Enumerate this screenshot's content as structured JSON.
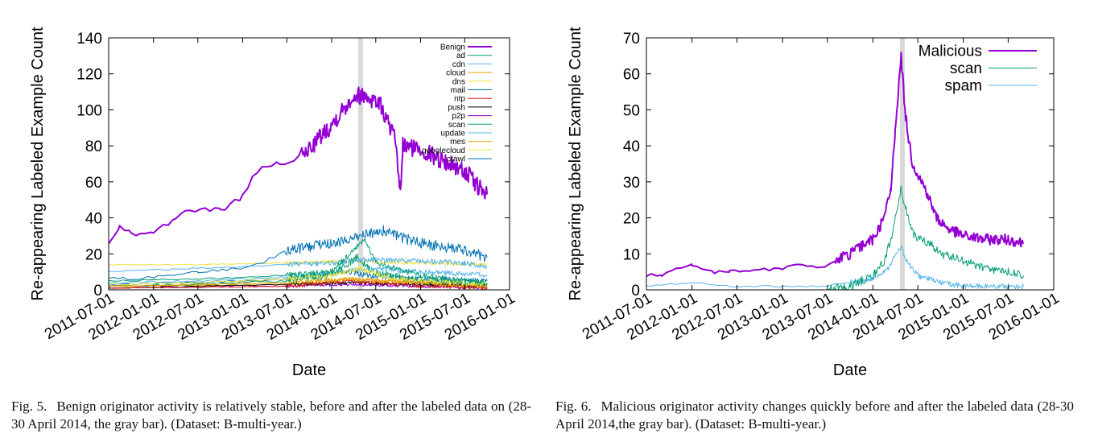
{
  "chart_data": [
    {
      "type": "line",
      "xlabel": "Date",
      "ylabel": "Re-appearing Labeled Example Count",
      "ylim": [
        0,
        140
      ],
      "yticks": [
        0,
        20,
        40,
        60,
        80,
        100,
        120,
        140
      ],
      "xlim": [
        "2011-07-01",
        "2016-01-01"
      ],
      "xticks": [
        "2011-07-01",
        "2012-01-01",
        "2012-07-01",
        "2013-01-01",
        "2013-07-01",
        "2014-01-01",
        "2014-07-01",
        "2015-01-01",
        "2015-07-01",
        "2016-01-01"
      ],
      "highlight": {
        "from": "2014-04-28",
        "to": "2014-04-30",
        "color": "#d9d9d9"
      },
      "legend_position": "top-right",
      "series": [
        {
          "name": "Benign",
          "color": "#9400d3",
          "width": 2,
          "noise": 5,
          "points": [
            [
              "2011-07-01",
              26
            ],
            [
              "2011-08-15",
              36
            ],
            [
              "2011-10-01",
              31
            ],
            [
              "2012-01-01",
              31
            ],
            [
              "2012-04-01",
              40
            ],
            [
              "2012-06-01",
              44
            ],
            [
              "2012-10-01",
              44
            ],
            [
              "2013-01-01",
              52
            ],
            [
              "2013-03-01",
              66
            ],
            [
              "2013-06-01",
              70
            ],
            [
              "2013-09-01",
              74
            ],
            [
              "2014-01-01",
              92
            ],
            [
              "2014-04-01",
              108
            ],
            [
              "2014-05-15",
              108
            ],
            [
              "2014-07-15",
              104
            ],
            [
              "2014-09-15",
              85
            ],
            [
              "2014-10-10",
              55
            ],
            [
              "2014-10-20",
              80
            ],
            [
              "2015-01-01",
              78
            ],
            [
              "2015-04-01",
              72
            ],
            [
              "2015-07-01",
              66
            ],
            [
              "2015-09-10",
              55
            ],
            [
              "2015-10-01",
              53
            ]
          ]
        },
        {
          "name": "ad",
          "color": "#009e73",
          "width": 1,
          "noise": 1.5,
          "points": [
            [
              "2011-07-01",
              5
            ],
            [
              "2012-07-01",
              6
            ],
            [
              "2013-07-01",
              8
            ],
            [
              "2014-01-01",
              10
            ],
            [
              "2014-05-15",
              28
            ],
            [
              "2014-07-01",
              15
            ],
            [
              "2015-01-01",
              8
            ],
            [
              "2015-07-01",
              5
            ],
            [
              "2015-10-01",
              4
            ]
          ]
        },
        {
          "name": "cdn",
          "color": "#56b4e9",
          "width": 1,
          "noise": 1.5,
          "points": [
            [
              "2011-07-01",
              10
            ],
            [
              "2012-01-01",
              11
            ],
            [
              "2013-01-01",
              13
            ],
            [
              "2013-07-01",
              14
            ],
            [
              "2014-01-01",
              15
            ],
            [
              "2014-06-01",
              17
            ],
            [
              "2015-01-01",
              16
            ],
            [
              "2015-07-01",
              15
            ],
            [
              "2015-10-01",
              13
            ]
          ]
        },
        {
          "name": "cloud",
          "color": "#e69f00",
          "width": 1,
          "noise": 1,
          "points": [
            [
              "2011-07-01",
              2
            ],
            [
              "2012-07-01",
              3
            ],
            [
              "2013-07-01",
              4
            ],
            [
              "2014-03-01",
              6
            ],
            [
              "2014-07-01",
              5
            ],
            [
              "2015-01-01",
              4
            ],
            [
              "2015-07-01",
              2
            ],
            [
              "2015-10-01",
              2
            ]
          ]
        },
        {
          "name": "dns",
          "color": "#f0e442",
          "width": 1,
          "noise": 1.5,
          "points": [
            [
              "2011-07-01",
              3
            ],
            [
              "2012-07-01",
              4
            ],
            [
              "2013-07-01",
              6
            ],
            [
              "2014-01-01",
              8
            ],
            [
              "2014-05-01",
              12
            ],
            [
              "2014-09-01",
              6
            ],
            [
              "2015-07-01",
              4
            ],
            [
              "2015-10-01",
              3
            ]
          ]
        },
        {
          "name": "mail",
          "color": "#0072b2",
          "width": 1,
          "noise": 3,
          "points": [
            [
              "2011-07-01",
              6
            ],
            [
              "2012-01-01",
              7
            ],
            [
              "2012-07-01",
              10
            ],
            [
              "2013-01-01",
              12
            ],
            [
              "2013-04-01",
              16
            ],
            [
              "2013-07-01",
              22
            ],
            [
              "2014-01-01",
              26
            ],
            [
              "2014-05-01",
              30
            ],
            [
              "2014-08-01",
              33
            ],
            [
              "2014-10-15",
              29
            ],
            [
              "2015-01-01",
              26
            ],
            [
              "2015-07-01",
              22
            ],
            [
              "2015-10-01",
              18
            ]
          ]
        },
        {
          "name": "ntp",
          "color": "#e51e10",
          "width": 1,
          "noise": 1,
          "points": [
            [
              "2011-07-01",
              1
            ],
            [
              "2013-07-01",
              2
            ],
            [
              "2014-04-01",
              5
            ],
            [
              "2014-07-01",
              4
            ],
            [
              "2015-01-01",
              2
            ],
            [
              "2015-10-01",
              1
            ]
          ]
        },
        {
          "name": "push",
          "color": "#000000",
          "width": 1,
          "noise": 0.8,
          "points": [
            [
              "2011-07-01",
              1
            ],
            [
              "2012-07-01",
              2
            ],
            [
              "2013-07-01",
              3
            ],
            [
              "2014-04-01",
              4
            ],
            [
              "2015-01-01",
              3
            ],
            [
              "2015-10-01",
              2
            ]
          ]
        },
        {
          "name": "p2p",
          "color": "#9400d3",
          "width": 1,
          "noise": 0.8,
          "points": [
            [
              "2011-07-01",
              1
            ],
            [
              "2013-07-01",
              2
            ],
            [
              "2014-04-01",
              3
            ],
            [
              "2015-01-01",
              2
            ],
            [
              "2015-10-01",
              1
            ]
          ]
        },
        {
          "name": "scan",
          "color": "#009e73",
          "width": 1,
          "noise": 2,
          "points": [
            [
              "2011-07-01",
              2
            ],
            [
              "2012-07-01",
              3
            ],
            [
              "2013-07-01",
              5
            ],
            [
              "2014-01-01",
              8
            ],
            [
              "2014-04-15",
              18
            ],
            [
              "2014-06-15",
              10
            ],
            [
              "2015-01-01",
              5
            ],
            [
              "2015-10-01",
              3
            ]
          ]
        },
        {
          "name": "update",
          "color": "#56b4e9",
          "width": 1,
          "noise": 1.5,
          "points": [
            [
              "2011-07-01",
              4
            ],
            [
              "2012-07-01",
              5
            ],
            [
              "2013-07-01",
              7
            ],
            [
              "2014-01-01",
              9
            ],
            [
              "2014-06-01",
              12
            ],
            [
              "2015-01-01",
              10
            ],
            [
              "2015-10-01",
              8
            ]
          ]
        },
        {
          "name": "mes",
          "color": "#e69f00",
          "width": 1,
          "noise": 1,
          "points": [
            [
              "2011-07-01",
              2
            ],
            [
              "2013-07-01",
              3
            ],
            [
              "2014-04-01",
              6
            ],
            [
              "2015-01-01",
              4
            ],
            [
              "2015-10-01",
              2
            ]
          ]
        },
        {
          "name": "googlecloud",
          "color": "#f0e442",
          "width": 1,
          "noise": 1,
          "points": [
            [
              "2011-07-01",
              14
            ],
            [
              "2012-07-01",
              14
            ],
            [
              "2013-07-01",
              15
            ],
            [
              "2014-04-01",
              16
            ],
            [
              "2015-01-01",
              15
            ],
            [
              "2015-10-01",
              14
            ]
          ]
        },
        {
          "name": "crawl",
          "color": "#0072b2",
          "width": 1,
          "noise": 1.5,
          "points": [
            [
              "2011-07-01",
              3
            ],
            [
              "2012-07-01",
              4
            ],
            [
              "2013-07-01",
              6
            ],
            [
              "2014-03-01",
              10
            ],
            [
              "2014-06-01",
              8
            ],
            [
              "2015-01-01",
              6
            ],
            [
              "2015-10-01",
              5
            ]
          ]
        }
      ]
    },
    {
      "type": "line",
      "xlabel": "Date",
      "ylabel": "Re-appearing Labeled Example Count",
      "ylim": [
        0,
        70
      ],
      "yticks": [
        0,
        10,
        20,
        30,
        40,
        50,
        60,
        70
      ],
      "xlim": [
        "2011-07-01",
        "2016-01-01"
      ],
      "xticks": [
        "2011-07-01",
        "2012-01-01",
        "2012-07-01",
        "2013-01-01",
        "2013-07-01",
        "2014-01-01",
        "2014-07-01",
        "2015-01-01",
        "2015-07-01",
        "2016-01-01"
      ],
      "highlight": {
        "from": "2014-04-28",
        "to": "2014-04-30",
        "color": "#d9d9d9"
      },
      "legend_position": "top-right",
      "series": [
        {
          "name": "Malicious",
          "color": "#9400d3",
          "width": 2,
          "noise": 1.5,
          "points": [
            [
              "2011-07-01",
              4
            ],
            [
              "2011-09-01",
              4
            ],
            [
              "2011-11-01",
              6
            ],
            [
              "2012-01-01",
              7
            ],
            [
              "2012-04-01",
              5
            ],
            [
              "2012-06-01",
              5
            ],
            [
              "2013-01-01",
              6
            ],
            [
              "2013-03-01",
              7
            ],
            [
              "2013-06-01",
              6
            ],
            [
              "2013-08-01",
              8
            ],
            [
              "2013-10-01",
              10
            ],
            [
              "2014-01-01",
              14
            ],
            [
              "2014-02-15",
              20
            ],
            [
              "2014-03-15",
              28
            ],
            [
              "2014-04-01",
              45
            ],
            [
              "2014-04-25",
              65
            ],
            [
              "2014-05-10",
              50
            ],
            [
              "2014-05-25",
              42
            ],
            [
              "2014-06-10",
              35
            ],
            [
              "2014-08-01",
              28
            ],
            [
              "2014-09-15",
              20
            ],
            [
              "2014-11-01",
              17
            ],
            [
              "2015-01-01",
              15
            ],
            [
              "2015-04-01",
              14
            ],
            [
              "2015-07-01",
              14
            ],
            [
              "2015-09-01",
              13
            ]
          ]
        },
        {
          "name": "scan",
          "color": "#009e73",
          "width": 1,
          "noise": 1.2,
          "points": [
            [
              "2013-07-01",
              0
            ],
            [
              "2013-10-01",
              1
            ],
            [
              "2014-01-01",
              4
            ],
            [
              "2014-02-15",
              8
            ],
            [
              "2014-03-15",
              14
            ],
            [
              "2014-04-25",
              28
            ],
            [
              "2014-05-15",
              22
            ],
            [
              "2014-06-15",
              15
            ],
            [
              "2014-08-15",
              13
            ],
            [
              "2014-10-01",
              10
            ],
            [
              "2015-01-01",
              8
            ],
            [
              "2015-04-01",
              6
            ],
            [
              "2015-07-01",
              5
            ],
            [
              "2015-09-01",
              4
            ]
          ]
        },
        {
          "name": "spam",
          "color": "#56b4e9",
          "width": 1,
          "noise": 0.8,
          "points": [
            [
              "2011-07-01",
              1
            ],
            [
              "2012-01-01",
              2
            ],
            [
              "2012-06-01",
              1
            ],
            [
              "2013-01-01",
              1
            ],
            [
              "2013-06-01",
              1
            ],
            [
              "2013-10-01",
              2
            ],
            [
              "2014-01-01",
              3
            ],
            [
              "2014-03-01",
              6
            ],
            [
              "2014-04-25",
              12
            ],
            [
              "2014-05-15",
              8
            ],
            [
              "2014-07-01",
              4
            ],
            [
              "2014-10-01",
              2
            ],
            [
              "2015-01-01",
              1
            ],
            [
              "2015-09-01",
              1
            ]
          ]
        }
      ]
    }
  ],
  "captions": [
    {
      "label": "Fig. 5.",
      "text": "Benign originator activity is relatively stable, before and after the labeled data on (28-30 April 2014, the gray bar). (Dataset: B-multi-year.)"
    },
    {
      "label": "Fig. 6.",
      "text": "Malicious originator activity changes quickly before and after the labeled data (28-30 April 2014,the gray bar). (Dataset: B-multi-year.)"
    }
  ]
}
